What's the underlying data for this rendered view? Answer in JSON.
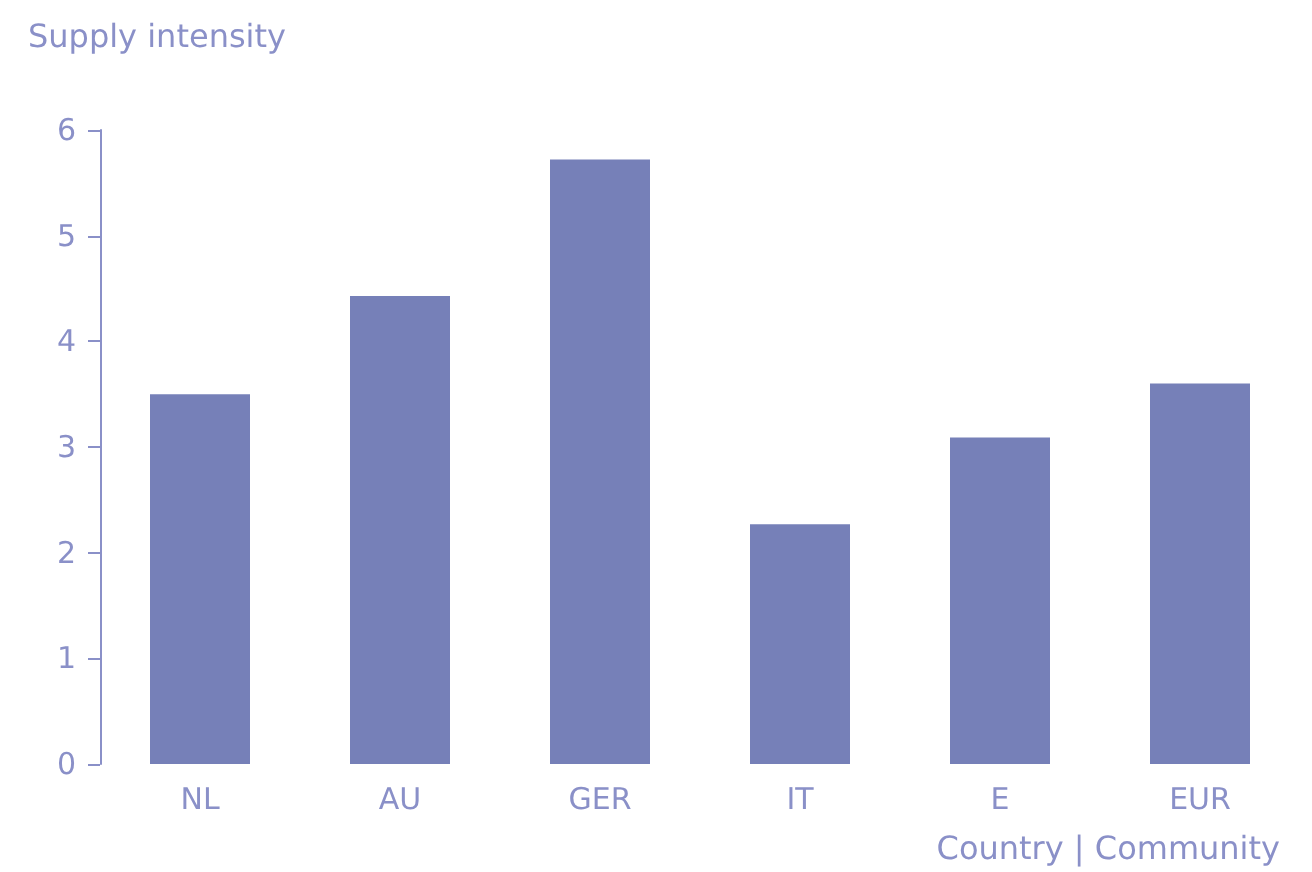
{
  "chart_data": {
    "type": "bar",
    "ylabel": "Supply intensity",
    "xlabel": "Country | Community",
    "categories": [
      "NL",
      "AU",
      "GER",
      "IT",
      "E",
      "EUR"
    ],
    "values": [
      3.5,
      4.43,
      5.72,
      2.27,
      3.09,
      3.6
    ],
    "color": "#7680b8",
    "ylim": [
      0,
      6
    ],
    "yticks": [
      0,
      1,
      2,
      3,
      4,
      5,
      6
    ],
    "grid": false
  }
}
